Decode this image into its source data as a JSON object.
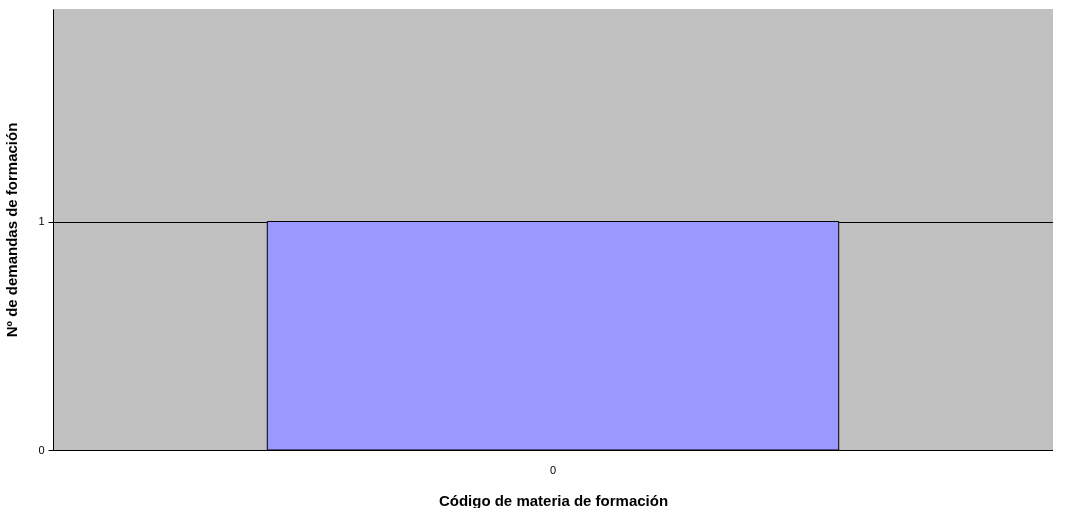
{
  "chart_data": {
    "type": "bar",
    "xlabel": "Código de materia de formación",
    "ylabel": "Nº de demandas de formación",
    "categories": [
      "0"
    ],
    "values": [
      1
    ],
    "color": "#9999ff",
    "ylim": [
      0,
      1.93
    ],
    "yticks": [
      0,
      1
    ],
    "grid": "y"
  }
}
